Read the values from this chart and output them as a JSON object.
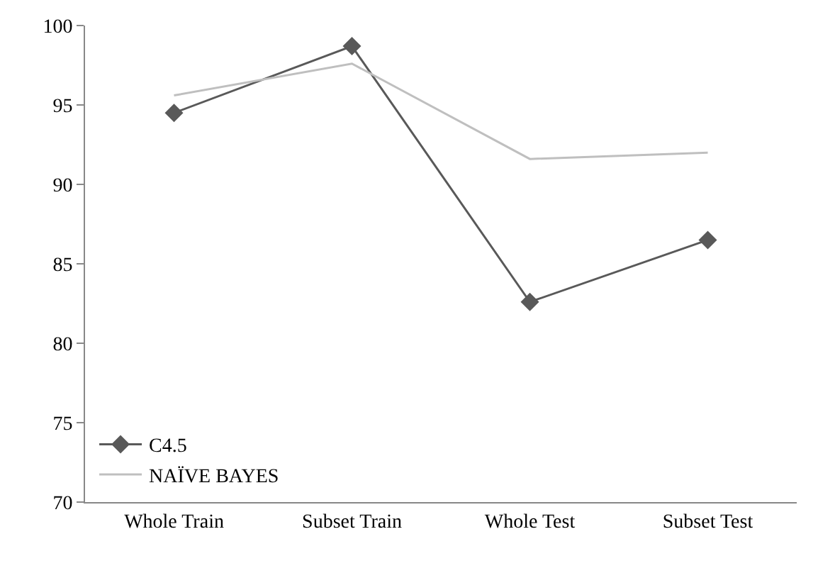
{
  "chart_data": {
    "type": "line",
    "categories": [
      "Whole Train",
      "Subset Train",
      "Whole Test",
      "Subset Test"
    ],
    "series": [
      {
        "name": "C4.5",
        "color": "#595959",
        "marker": "diamond",
        "values": [
          94.5,
          98.7,
          82.6,
          86.5
        ]
      },
      {
        "name": "NAÏVE BAYES",
        "color": "#bfbfbf",
        "marker": "none",
        "values": [
          95.6,
          97.6,
          91.6,
          92.0
        ]
      }
    ],
    "ylim": [
      70,
      100
    ],
    "yticks": [
      70,
      75,
      80,
      85,
      90,
      95,
      100
    ],
    "legend": "bottom left",
    "line_style": "solid"
  }
}
